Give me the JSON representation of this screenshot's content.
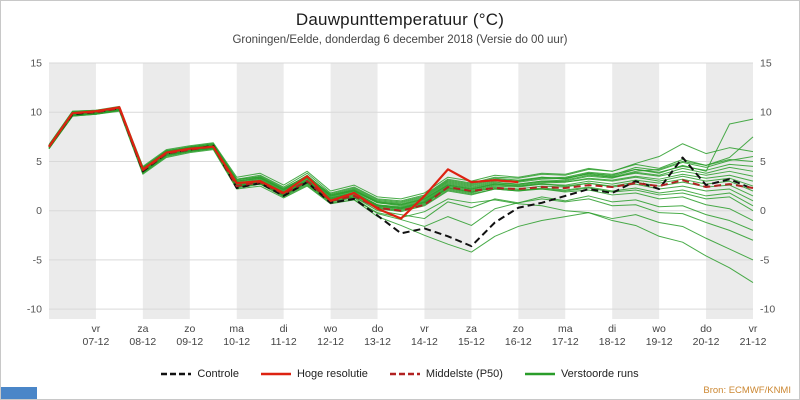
{
  "header": {
    "title": "Dauwpunttemperatuur (°C)",
    "subtitle": "Groningen/Eelde, donderdag 6 december 2018 (Versie do 00 uur)"
  },
  "footer": {
    "source": "Bron: ECMWF/KNMI"
  },
  "colors": {
    "band": "#ebebeb",
    "grid": "#d9d9d9",
    "axis_text": "#555555",
    "source_text": "#cc8833",
    "footer_bar": "#4a86c8",
    "control": "#111111",
    "high_res": "#dd2211",
    "p50": "#b22222",
    "ensemble": "#2a9d2a"
  },
  "chart_data": {
    "type": "line",
    "title": "Dauwpunttemperatuur (°C)",
    "subtitle": "Groningen/Eelde, donderdag 6 december 2018 (Versie do 00 uur)",
    "x_step_hours": 12,
    "x_points_per_day": 2,
    "x_total_steps": 30,
    "x_days": [
      {
        "dow": "vr",
        "date": "07-12"
      },
      {
        "dow": "za",
        "date": "08-12"
      },
      {
        "dow": "zo",
        "date": "09-12"
      },
      {
        "dow": "ma",
        "date": "10-12"
      },
      {
        "dow": "di",
        "date": "11-12"
      },
      {
        "dow": "wo",
        "date": "12-12"
      },
      {
        "dow": "do",
        "date": "13-12"
      },
      {
        "dow": "vr",
        "date": "14-12"
      },
      {
        "dow": "za",
        "date": "15-12"
      },
      {
        "dow": "zo",
        "date": "16-12"
      },
      {
        "dow": "ma",
        "date": "17-12"
      },
      {
        "dow": "di",
        "date": "18-12"
      },
      {
        "dow": "wo",
        "date": "19-12"
      },
      {
        "dow": "do",
        "date": "20-12"
      },
      {
        "dow": "vr",
        "date": "21-12"
      }
    ],
    "ylim": [
      -11,
      15
    ],
    "yticks": [
      15,
      10,
      5,
      0,
      -5,
      -10
    ],
    "band_color": "#ebebeb",
    "grid_color": "#d9d9d9",
    "series": [
      {
        "name": "Controle",
        "role": "control",
        "color": "#111111",
        "dash": "7 4",
        "width": 2,
        "values": [
          6.5,
          9.8,
          10.0,
          10.4,
          4.0,
          5.8,
          6.2,
          6.6,
          2.3,
          2.8,
          1.5,
          2.9,
          0.8,
          1.2,
          -0.5,
          -2.3,
          -1.8,
          -2.6,
          -3.6,
          -1.2,
          0.3,
          0.8,
          1.5,
          2.2,
          1.8,
          3.0,
          2.2,
          5.4,
          2.6,
          3.2,
          2.2
        ]
      },
      {
        "name": "Middelste (P50)",
        "role": "p50",
        "color": "#b22222",
        "dash": "7 4",
        "width": 2,
        "values": [
          6.5,
          9.9,
          10.0,
          10.4,
          4.1,
          5.8,
          6.2,
          6.5,
          2.5,
          2.9,
          1.7,
          3.0,
          1.0,
          1.5,
          0.3,
          0.0,
          0.6,
          2.4,
          2.0,
          2.3,
          2.2,
          2.4,
          2.3,
          2.6,
          2.4,
          2.8,
          2.5,
          3.1,
          2.4,
          2.7,
          2.3
        ]
      },
      {
        "name": "Hoge resolutie",
        "role": "high-res",
        "color": "#dd2211",
        "dash": null,
        "width": 2.2,
        "values": [
          6.5,
          9.9,
          10.1,
          10.5,
          4.2,
          5.9,
          6.3,
          6.5,
          2.8,
          3.0,
          1.8,
          3.5,
          1.0,
          1.8,
          0.2,
          -0.8,
          1.5,
          4.2,
          2.9,
          3.1,
          2.9
        ]
      }
    ],
    "ensemble": {
      "name": "Verstoorde runs",
      "color": "#2a9d2a",
      "width": 1,
      "opacity": 0.85,
      "members": [
        [
          6.4,
          9.7,
          9.9,
          10.3,
          4.3,
          6.0,
          6.4,
          6.7,
          3.0,
          3.4,
          2.2,
          3.6,
          1.6,
          2.2,
          1.0,
          0.8,
          1.4,
          3.0,
          2.6,
          3.2,
          3.0,
          3.4,
          3.2,
          3.8,
          3.5,
          4.2,
          3.8,
          4.6,
          4.0,
          8.8,
          9.3
        ],
        [
          6.6,
          10.0,
          10.1,
          10.5,
          3.9,
          5.7,
          6.1,
          6.4,
          2.7,
          3.1,
          1.9,
          3.2,
          1.3,
          1.9,
          0.6,
          0.4,
          1.0,
          2.6,
          2.2,
          2.8,
          2.7,
          3.0,
          3.1,
          3.6,
          3.4,
          4.0,
          4.2,
          5.0,
          4.6,
          5.4,
          7.5
        ],
        [
          6.3,
          9.6,
          9.8,
          10.2,
          4.4,
          6.1,
          6.5,
          6.8,
          3.2,
          3.6,
          2.4,
          3.8,
          1.8,
          2.4,
          1.2,
          1.0,
          1.6,
          3.2,
          2.8,
          3.4,
          3.3,
          3.7,
          3.6,
          4.2,
          4.0,
          4.8,
          5.5,
          6.8,
          5.8,
          6.4,
          6.0
        ],
        [
          6.5,
          9.9,
          10.0,
          10.4,
          4.0,
          5.8,
          6.2,
          6.5,
          2.8,
          3.2,
          2.0,
          3.3,
          1.4,
          2.0,
          0.8,
          0.6,
          1.2,
          2.8,
          2.4,
          3.0,
          2.9,
          3.2,
          3.3,
          3.8,
          3.6,
          4.4,
          4.1,
          4.9,
          4.4,
          5.1,
          5.5
        ],
        [
          6.7,
          10.1,
          10.2,
          10.6,
          4.5,
          6.2,
          6.6,
          6.9,
          3.4,
          3.8,
          2.6,
          4.0,
          2.0,
          2.6,
          1.4,
          1.2,
          1.8,
          3.4,
          3.0,
          3.6,
          3.4,
          3.8,
          3.7,
          4.3,
          4.0,
          4.7,
          4.3,
          5.2,
          4.6,
          5.2,
          5.0
        ],
        [
          6.4,
          9.8,
          9.9,
          10.3,
          4.1,
          5.9,
          6.3,
          6.6,
          2.9,
          3.3,
          2.1,
          3.4,
          1.5,
          2.1,
          0.9,
          0.7,
          1.3,
          2.9,
          2.5,
          3.1,
          3.0,
          3.3,
          3.4,
          3.9,
          3.7,
          4.2,
          3.9,
          4.5,
          4.1,
          4.7,
          4.5
        ],
        [
          6.6,
          10.0,
          10.0,
          10.4,
          3.8,
          5.6,
          6.0,
          6.3,
          2.6,
          3.0,
          1.8,
          3.1,
          1.2,
          1.8,
          0.5,
          0.3,
          0.9,
          2.5,
          2.1,
          2.7,
          2.6,
          2.9,
          3.0,
          3.5,
          3.3,
          3.9,
          3.6,
          4.3,
          3.8,
          4.4,
          4.0
        ],
        [
          6.5,
          9.9,
          10.1,
          10.5,
          4.2,
          6.0,
          6.4,
          6.6,
          3.1,
          3.5,
          2.3,
          3.5,
          1.7,
          2.3,
          1.1,
          0.9,
          1.5,
          3.1,
          2.7,
          3.3,
          3.1,
          3.4,
          3.3,
          3.7,
          3.4,
          3.8,
          3.5,
          4.0,
          3.6,
          4.0,
          3.5
        ],
        [
          6.3,
          9.7,
          9.8,
          10.2,
          4.0,
          5.8,
          6.2,
          6.4,
          2.5,
          2.9,
          1.7,
          3.0,
          1.1,
          1.7,
          0.4,
          0.2,
          0.8,
          2.4,
          2.0,
          2.6,
          2.5,
          2.8,
          2.9,
          3.3,
          3.1,
          3.5,
          3.2,
          3.7,
          3.3,
          3.6,
          3.0
        ],
        [
          6.6,
          10.0,
          10.1,
          10.5,
          4.3,
          6.1,
          6.4,
          6.7,
          3.0,
          3.3,
          2.1,
          3.3,
          1.5,
          2.0,
          0.8,
          0.5,
          1.1,
          2.7,
          2.3,
          2.9,
          2.7,
          3.0,
          2.9,
          3.2,
          3.0,
          3.4,
          3.0,
          3.5,
          3.0,
          3.3,
          2.5
        ],
        [
          6.4,
          9.8,
          10.0,
          10.4,
          3.9,
          5.7,
          6.1,
          6.4,
          2.4,
          2.8,
          1.6,
          2.9,
          1.0,
          1.6,
          0.3,
          0.1,
          0.7,
          2.3,
          1.9,
          2.5,
          2.4,
          2.7,
          2.6,
          3.0,
          2.7,
          3.1,
          2.8,
          3.2,
          2.7,
          3.0,
          2.0
        ],
        [
          6.5,
          9.9,
          9.9,
          10.3,
          4.1,
          5.9,
          6.3,
          6.5,
          2.7,
          3.0,
          1.8,
          3.0,
          1.2,
          1.7,
          0.5,
          0.2,
          0.8,
          2.2,
          1.8,
          2.4,
          2.2,
          2.5,
          2.4,
          2.8,
          2.5,
          2.9,
          2.5,
          2.9,
          2.4,
          2.6,
          1.5
        ],
        [
          6.7,
          10.1,
          10.2,
          10.5,
          4.4,
          6.0,
          6.5,
          6.8,
          3.2,
          3.4,
          2.2,
          3.4,
          1.6,
          2.1,
          0.9,
          0.6,
          1.2,
          2.6,
          2.2,
          2.7,
          2.5,
          2.7,
          2.5,
          2.8,
          2.4,
          2.7,
          2.2,
          2.5,
          2.0,
          2.2,
          1.0
        ],
        [
          6.3,
          9.6,
          9.9,
          10.3,
          3.8,
          5.5,
          6.0,
          6.3,
          2.3,
          2.7,
          1.5,
          2.8,
          0.9,
          1.4,
          0.2,
          -0.1,
          0.5,
          2.0,
          1.6,
          2.2,
          2.0,
          2.3,
          2.1,
          2.4,
          2.0,
          2.3,
          1.8,
          2.1,
          1.5,
          1.8,
          0.5
        ],
        [
          6.5,
          9.8,
          10.0,
          10.4,
          4.0,
          5.7,
          6.2,
          6.5,
          2.6,
          2.9,
          1.7,
          2.9,
          1.1,
          1.5,
          0.3,
          0.0,
          0.6,
          2.1,
          1.7,
          2.2,
          2.0,
          2.2,
          2.0,
          2.3,
          1.9,
          2.1,
          1.6,
          1.8,
          1.2,
          1.4,
          0.0
        ],
        [
          6.6,
          10.0,
          10.1,
          10.4,
          4.2,
          5.9,
          6.3,
          6.6,
          2.8,
          3.1,
          1.9,
          3.1,
          1.3,
          1.8,
          0.6,
          0.3,
          0.9,
          2.3,
          1.9,
          2.3,
          2.1,
          2.2,
          1.9,
          2.1,
          1.6,
          1.8,
          1.2,
          1.4,
          0.6,
          0.2,
          -1.0
        ],
        [
          6.4,
          9.7,
          9.9,
          10.2,
          3.9,
          5.6,
          6.1,
          6.3,
          2.4,
          2.7,
          1.5,
          2.7,
          0.9,
          1.3,
          -0.3,
          -0.9,
          -1.6,
          -0.6,
          -1.5,
          0.2,
          0.8,
          1.4,
          1.0,
          1.5,
          0.9,
          1.1,
          0.4,
          0.5,
          -0.4,
          -1.0,
          -2.0
        ],
        [
          6.5,
          9.9,
          10.0,
          10.3,
          4.1,
          5.8,
          6.2,
          6.4,
          2.6,
          2.8,
          1.6,
          2.8,
          1.0,
          1.4,
          0.0,
          -0.4,
          -0.8,
          0.9,
          0.3,
          1.2,
          0.8,
          1.2,
          0.9,
          1.2,
          0.5,
          0.6,
          -0.2,
          -0.3,
          -1.2,
          -2.0,
          -3.0
        ],
        [
          6.3,
          9.6,
          9.8,
          10.1,
          3.7,
          5.4,
          5.9,
          6.2,
          2.2,
          2.5,
          1.3,
          2.5,
          0.7,
          1.1,
          -0.6,
          -1.5,
          -2.5,
          -3.4,
          -4.2,
          -2.6,
          -1.6,
          -1.0,
          -0.6,
          -0.2,
          -0.8,
          -0.4,
          -1.2,
          -1.6,
          -2.8,
          -3.9,
          -5.0
        ],
        [
          6.6,
          10.0,
          10.0,
          10.4,
          4.0,
          5.7,
          6.1,
          6.4,
          2.5,
          2.7,
          1.4,
          2.6,
          0.8,
          1.1,
          -0.2,
          -0.7,
          -0.1,
          1.2,
          0.8,
          1.1,
          0.7,
          0.5,
          0.0,
          -0.2,
          -1.0,
          -1.5,
          -2.6,
          -3.2,
          -4.6,
          -5.8,
          -7.3
        ]
      ]
    },
    "legend": [
      {
        "id": "controle",
        "label": "Controle",
        "color": "#111111",
        "dash": true
      },
      {
        "id": "hoge-resolutie",
        "label": "Hoge resolutie",
        "color": "#dd2211",
        "dash": false
      },
      {
        "id": "middelste-p50",
        "label": "Middelste (P50)",
        "color": "#b22222",
        "dash": true
      },
      {
        "id": "verstoorde-runs",
        "label": "Verstoorde runs",
        "color": "#2a9d2a",
        "dash": false
      }
    ]
  }
}
